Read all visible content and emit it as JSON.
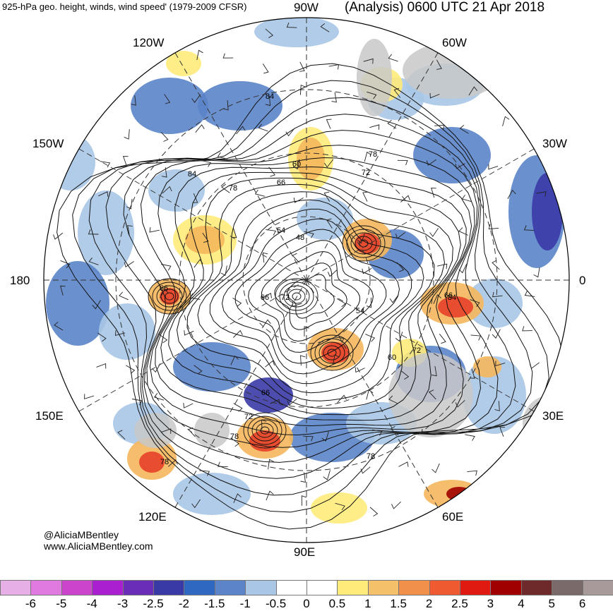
{
  "header": {
    "left_title": "925-hPa geo. height, winds, wind speed' (1979-2009 CFSR)",
    "right_title": "(Analysis) 0600 UTC 21 Apr 2018"
  },
  "map": {
    "projection": "north-polar-stereographic",
    "longitude_labels": [
      "90W",
      "60W",
      "30W",
      "0",
      "30E",
      "60E",
      "90E",
      "120E",
      "150E",
      "180",
      "150W",
      "120W"
    ],
    "contour_labels": [
      "84",
      "84",
      "78",
      "66",
      "60",
      "54",
      "48",
      "72",
      "78",
      "66",
      "66",
      "54",
      "72",
      "66",
      "60",
      "72",
      "78",
      "84",
      "72",
      "78",
      "78",
      "66"
    ],
    "land_color": "#c8c8c8",
    "coast_color": "#555555",
    "anomaly_colors": {
      "strong_negative": "#3a3aa6",
      "negative": "#5b84c9",
      "weak_negative": "#a9c6e6",
      "weak_positive": "#ffeb7a",
      "positive": "#f5b75c",
      "strong_positive": "#e8402a",
      "extreme_positive": "#a00000"
    }
  },
  "credits": {
    "handle": "@AliciaMBentley",
    "website": "www.AliciaMBentley.com"
  },
  "colorbar": {
    "ticks": [
      "-6",
      "-5",
      "-4",
      "-3",
      "-2.5",
      "-2",
      "-1.5",
      "-1",
      "-0.5",
      "0",
      "0.5",
      "1",
      "1.5",
      "2",
      "2.5",
      "3",
      "4",
      "5",
      "6"
    ],
    "colors": [
      "#e6b0e6",
      "#e07ae0",
      "#cc44cc",
      "#aa1fd0",
      "#6a2db5",
      "#3a3aa6",
      "#2f68c0",
      "#5b84c9",
      "#a9c6e6",
      "#ffffff",
      "#ffffff",
      "#ffeb7a",
      "#f5c06a",
      "#f0904a",
      "#f05a30",
      "#e01a10",
      "#a00000",
      "#6e2a2a",
      "#7a6a6a",
      "#a89a9a"
    ]
  }
}
